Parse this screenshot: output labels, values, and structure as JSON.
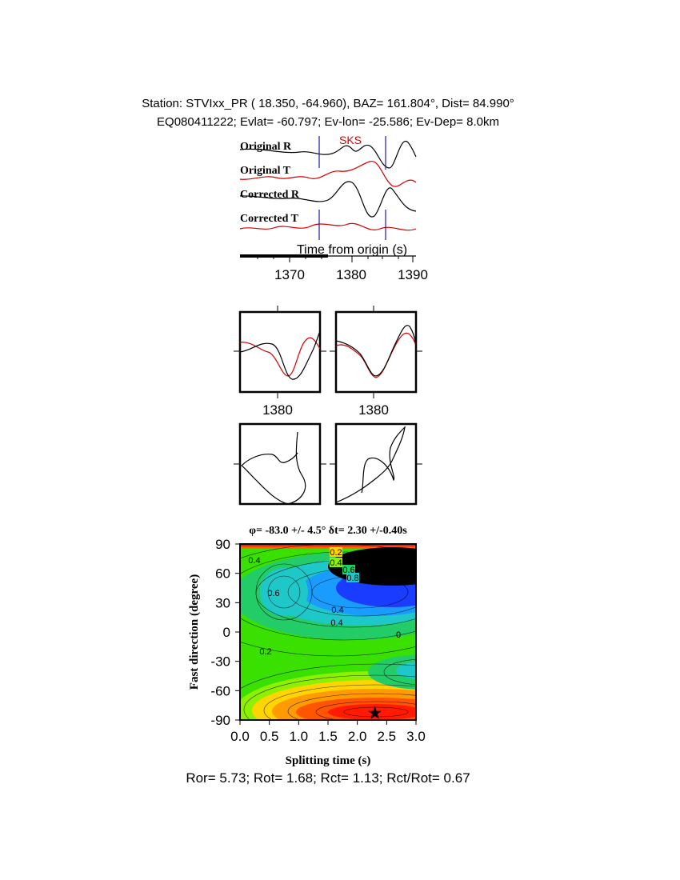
{
  "header": {
    "line1": "Station: STVIxx_PR (  18.350,  -64.960), BAZ=  161.804°, Dist=   84.990°",
    "line2": "EQ080411222; Evlat= -60.797; Ev-lon= -25.586; Ev-Dep=  8.0km"
  },
  "traces": {
    "phase_label": "SKS",
    "labels": [
      "Original R",
      "Original T",
      "Corrected R",
      "Corrected T"
    ],
    "xlabel": "Time from origin (s)",
    "ticks": [
      "1370",
      "1380",
      "1390"
    ],
    "window_start_s": 1375,
    "window_end_s": 1386
  },
  "panels": {
    "tick_left": "1380",
    "tick_right": "1380"
  },
  "grid": {
    "title": "φ= -83.0 +/- 4.5° δt= 2.30 +/-0.40s",
    "xlabel": "Splitting time (s)",
    "ylabel": "Fast direction (degree)",
    "xticks": [
      "0.0",
      "0.5",
      "1.0",
      "1.5",
      "2.0",
      "2.5",
      "3.0"
    ],
    "yticks": [
      "90",
      "60",
      "30",
      "0",
      "-30",
      "-60",
      "-90"
    ],
    "contour_labels": [
      "0.2",
      "0.4",
      "0.6",
      "0.8",
      "0.4",
      "0.6",
      "0.4",
      "0.4",
      "0.2",
      "0"
    ],
    "best_fast_direction_deg": -83.0,
    "best_delay_s": 2.3
  },
  "footer": "Ror= 5.73; Rot= 1.68; Rct= 1.13; Rct/Rot= 0.67",
  "chart_data": {
    "type": "heatmap",
    "title": "φ= -83.0 +/- 4.5° δt= 2.30 +/-0.40s",
    "xlabel": "Splitting time (s)",
    "ylabel": "Fast direction (degree)",
    "xlim": [
      0,
      3
    ],
    "ylim": [
      -90,
      90
    ],
    "best_fit": {
      "x": 2.3,
      "y": -83.0
    },
    "colormap": [
      "#ff1a00",
      "#ff7a00",
      "#ffd400",
      "#8cf000",
      "#3ae000",
      "#22cc66",
      "#1ec8c8",
      "#1a9cff",
      "#1a3cff",
      "#000000"
    ]
  }
}
